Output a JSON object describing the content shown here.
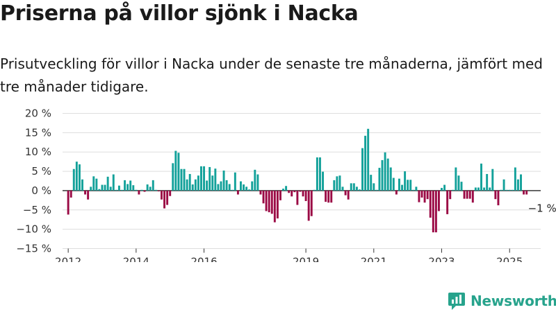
{
  "title": "Priserna på villor sjönk i Nacka",
  "subtitle": "Prisutveckling för villor i Nacka under de senaste tre månaderna, jämfört med tre månader tidigare.",
  "brand": {
    "name": "Newsworthy",
    "logo_icon": "newsworthy-chart-logo-icon"
  },
  "colors": {
    "positive": "#13a19a",
    "negative": "#9b0a45",
    "grid": "#dddddd",
    "zero_line": "#222222",
    "brand": "#27a38c"
  },
  "chart_data": {
    "type": "bar",
    "title": "Priserna på villor sjönk i Nacka",
    "ylabel": "",
    "xlabel": "",
    "ylim": [
      -15,
      20
    ],
    "yticks": [
      20,
      15,
      10,
      5,
      0,
      -5,
      -10,
      -15
    ],
    "ytick_labels": [
      "20 %",
      "15 %",
      "10 %",
      "5 %",
      "0 %",
      "−5 %",
      "−10 %",
      "−15 %"
    ],
    "x_range": [
      "2011-11",
      "2025-12"
    ],
    "xticks": [
      {
        "label": "2012",
        "date": "2012-01"
      },
      {
        "label": "2014",
        "date": "2014-01"
      },
      {
        "label": "2016",
        "date": "2016-01"
      },
      {
        "label": "2019",
        "date": "2019-01"
      },
      {
        "label": "2021",
        "date": "2021-01"
      },
      {
        "label": "2023",
        "date": "2023-01"
      },
      {
        "label": "2025",
        "date": "2025-01"
      }
    ],
    "grid": true,
    "legend": "none",
    "annotation": {
      "label": "−1 %",
      "date": "2025-06",
      "value": -1
    },
    "series": [
      {
        "values": [
          {
            "date": "2012-01",
            "value": -6.2
          },
          {
            "date": "2012-02",
            "value": -1.8
          },
          {
            "date": "2012-03",
            "value": 5.6
          },
          {
            "date": "2012-04",
            "value": 7.5
          },
          {
            "date": "2012-05",
            "value": 6.8
          },
          {
            "date": "2012-06",
            "value": 2.9
          },
          {
            "date": "2012-07",
            "value": -1.0
          },
          {
            "date": "2012-08",
            "value": -2.3
          },
          {
            "date": "2012-09",
            "value": 1.0
          },
          {
            "date": "2012-10",
            "value": 3.7
          },
          {
            "date": "2012-11",
            "value": 3.1
          },
          {
            "date": "2012-12",
            "value": 0.4
          },
          {
            "date": "2013-01",
            "value": 1.5
          },
          {
            "date": "2013-02",
            "value": 1.5
          },
          {
            "date": "2013-03",
            "value": 3.6
          },
          {
            "date": "2013-04",
            "value": 1.0
          },
          {
            "date": "2013-05",
            "value": 4.2
          },
          {
            "date": "2013-06",
            "value": 0.2
          },
          {
            "date": "2013-07",
            "value": 1.3
          },
          {
            "date": "2013-08",
            "value": 0.2
          },
          {
            "date": "2013-09",
            "value": 2.7
          },
          {
            "date": "2013-10",
            "value": 1.7
          },
          {
            "date": "2013-11",
            "value": 2.6
          },
          {
            "date": "2013-12",
            "value": 1.4
          },
          {
            "date": "2014-01",
            "value": 0.2
          },
          {
            "date": "2014-02",
            "value": -1.0
          },
          {
            "date": "2014-03",
            "value": 0.2
          },
          {
            "date": "2014-04",
            "value": -0.3
          },
          {
            "date": "2014-05",
            "value": 1.6
          },
          {
            "date": "2014-06",
            "value": 1.0
          },
          {
            "date": "2014-07",
            "value": 2.7
          },
          {
            "date": "2014-08",
            "value": 0.2
          },
          {
            "date": "2014-09",
            "value": -0.2
          },
          {
            "date": "2014-10",
            "value": -2.3
          },
          {
            "date": "2014-11",
            "value": -4.6
          },
          {
            "date": "2014-12",
            "value": -3.7
          },
          {
            "date": "2015-01",
            "value": -1.4
          },
          {
            "date": "2015-02",
            "value": 7.1
          },
          {
            "date": "2015-03",
            "value": 10.3
          },
          {
            "date": "2015-04",
            "value": 9.8
          },
          {
            "date": "2015-05",
            "value": 5.6
          },
          {
            "date": "2015-06",
            "value": 5.6
          },
          {
            "date": "2015-07",
            "value": 2.9
          },
          {
            "date": "2015-08",
            "value": 4.3
          },
          {
            "date": "2015-09",
            "value": 1.6
          },
          {
            "date": "2015-10",
            "value": 2.9
          },
          {
            "date": "2015-11",
            "value": 3.9
          },
          {
            "date": "2015-12",
            "value": 6.3
          },
          {
            "date": "2016-01",
            "value": 6.3
          },
          {
            "date": "2016-02",
            "value": 2.6
          },
          {
            "date": "2016-03",
            "value": 6.1
          },
          {
            "date": "2016-04",
            "value": 3.9
          },
          {
            "date": "2016-05",
            "value": 5.7
          },
          {
            "date": "2016-06",
            "value": 1.7
          },
          {
            "date": "2016-07",
            "value": 2.4
          },
          {
            "date": "2016-08",
            "value": 5.2
          },
          {
            "date": "2016-09",
            "value": 2.7
          },
          {
            "date": "2016-10",
            "value": 1.7
          },
          {
            "date": "2016-11",
            "value": 0.2
          },
          {
            "date": "2016-12",
            "value": 4.7
          },
          {
            "date": "2017-01",
            "value": -1.0
          },
          {
            "date": "2017-02",
            "value": 2.4
          },
          {
            "date": "2017-03",
            "value": 1.6
          },
          {
            "date": "2017-04",
            "value": 1.0
          },
          {
            "date": "2017-05",
            "value": 0.3
          },
          {
            "date": "2017-06",
            "value": 2.4
          },
          {
            "date": "2017-07",
            "value": 5.4
          },
          {
            "date": "2017-08",
            "value": 4.2
          },
          {
            "date": "2017-09",
            "value": -1.0
          },
          {
            "date": "2017-10",
            "value": -3.3
          },
          {
            "date": "2017-11",
            "value": -5.3
          },
          {
            "date": "2017-12",
            "value": -5.6
          },
          {
            "date": "2018-01",
            "value": -6.0
          },
          {
            "date": "2018-02",
            "value": -8.2
          },
          {
            "date": "2018-03",
            "value": -7.2
          },
          {
            "date": "2018-04",
            "value": -2.5
          },
          {
            "date": "2018-05",
            "value": 0.5
          },
          {
            "date": "2018-06",
            "value": 1.2
          },
          {
            "date": "2018-07",
            "value": -0.6
          },
          {
            "date": "2018-08",
            "value": -1.5
          },
          {
            "date": "2018-09",
            "value": -0.4
          },
          {
            "date": "2018-10",
            "value": -3.7
          },
          {
            "date": "2018-11",
            "value": -0.3
          },
          {
            "date": "2018-12",
            "value": -1.5
          },
          {
            "date": "2019-01",
            "value": -2.7
          },
          {
            "date": "2019-02",
            "value": -7.8
          },
          {
            "date": "2019-03",
            "value": -6.6
          },
          {
            "date": "2019-04",
            "value": 0.2
          },
          {
            "date": "2019-05",
            "value": 8.6
          },
          {
            "date": "2019-06",
            "value": 8.6
          },
          {
            "date": "2019-07",
            "value": 4.9
          },
          {
            "date": "2019-08",
            "value": -2.9
          },
          {
            "date": "2019-09",
            "value": -3.1
          },
          {
            "date": "2019-10",
            "value": -3.1
          },
          {
            "date": "2019-11",
            "value": 2.7
          },
          {
            "date": "2019-12",
            "value": 3.7
          },
          {
            "date": "2020-01",
            "value": 3.9
          },
          {
            "date": "2020-02",
            "value": 1.0
          },
          {
            "date": "2020-03",
            "value": -1.2
          },
          {
            "date": "2020-04",
            "value": -2.3
          },
          {
            "date": "2020-05",
            "value": 1.9
          },
          {
            "date": "2020-06",
            "value": 1.9
          },
          {
            "date": "2020-07",
            "value": 1.0
          },
          {
            "date": "2020-08",
            "value": 0.3
          },
          {
            "date": "2020-09",
            "value": 11.0
          },
          {
            "date": "2020-10",
            "value": 14.2
          },
          {
            "date": "2020-11",
            "value": 16.0
          },
          {
            "date": "2020-12",
            "value": 4.1
          },
          {
            "date": "2021-01",
            "value": 1.9
          },
          {
            "date": "2021-02",
            "value": 0.2
          },
          {
            "date": "2021-03",
            "value": 5.9
          },
          {
            "date": "2021-04",
            "value": 7.9
          },
          {
            "date": "2021-05",
            "value": 9.9
          },
          {
            "date": "2021-06",
            "value": 8.3
          },
          {
            "date": "2021-07",
            "value": 6.0
          },
          {
            "date": "2021-08",
            "value": 3.3
          },
          {
            "date": "2021-09",
            "value": -1.0
          },
          {
            "date": "2021-10",
            "value": 3.1
          },
          {
            "date": "2021-11",
            "value": 1.5
          },
          {
            "date": "2021-12",
            "value": 5.0
          },
          {
            "date": "2022-01",
            "value": 2.8
          },
          {
            "date": "2022-02",
            "value": 2.8
          },
          {
            "date": "2022-03",
            "value": 0.2
          },
          {
            "date": "2022-04",
            "value": 1.0
          },
          {
            "date": "2022-05",
            "value": -3.0
          },
          {
            "date": "2022-06",
            "value": -1.8
          },
          {
            "date": "2022-07",
            "value": -3.1
          },
          {
            "date": "2022-08",
            "value": -2.2
          },
          {
            "date": "2022-09",
            "value": -7.0
          },
          {
            "date": "2022-10",
            "value": -10.8
          },
          {
            "date": "2022-11",
            "value": -10.8
          },
          {
            "date": "2022-12",
            "value": -5.3
          },
          {
            "date": "2023-01",
            "value": 0.7
          },
          {
            "date": "2023-02",
            "value": 1.5
          },
          {
            "date": "2023-03",
            "value": -6.1
          },
          {
            "date": "2023-04",
            "value": -2.2
          },
          {
            "date": "2023-05",
            "value": 0.2
          },
          {
            "date": "2023-06",
            "value": 6.0
          },
          {
            "date": "2023-07",
            "value": 3.9
          },
          {
            "date": "2023-08",
            "value": 2.3
          },
          {
            "date": "2023-09",
            "value": -2.1
          },
          {
            "date": "2023-10",
            "value": -2.1
          },
          {
            "date": "2023-11",
            "value": -2.1
          },
          {
            "date": "2023-12",
            "value": -3.1
          },
          {
            "date": "2024-01",
            "value": 0.8
          },
          {
            "date": "2024-02",
            "value": 0.8
          },
          {
            "date": "2024-03",
            "value": 7.0
          },
          {
            "date": "2024-04",
            "value": 0.8
          },
          {
            "date": "2024-05",
            "value": 4.3
          },
          {
            "date": "2024-06",
            "value": 0.8
          },
          {
            "date": "2024-07",
            "value": 5.6
          },
          {
            "date": "2024-08",
            "value": -2.2
          },
          {
            "date": "2024-09",
            "value": -3.8
          },
          {
            "date": "2024-10",
            "value": 0.2
          },
          {
            "date": "2024-11",
            "value": 2.9
          },
          {
            "date": "2024-12",
            "value": 0.2
          },
          {
            "date": "2025-01",
            "value": 0.2
          },
          {
            "date": "2025-02",
            "value": 0.2
          },
          {
            "date": "2025-03",
            "value": 6.0
          },
          {
            "date": "2025-04",
            "value": 2.9
          },
          {
            "date": "2025-05",
            "value": 4.2
          },
          {
            "date": "2025-06",
            "value": -1.0
          },
          {
            "date": "2025-07",
            "value": -1.0
          }
        ]
      }
    ]
  }
}
